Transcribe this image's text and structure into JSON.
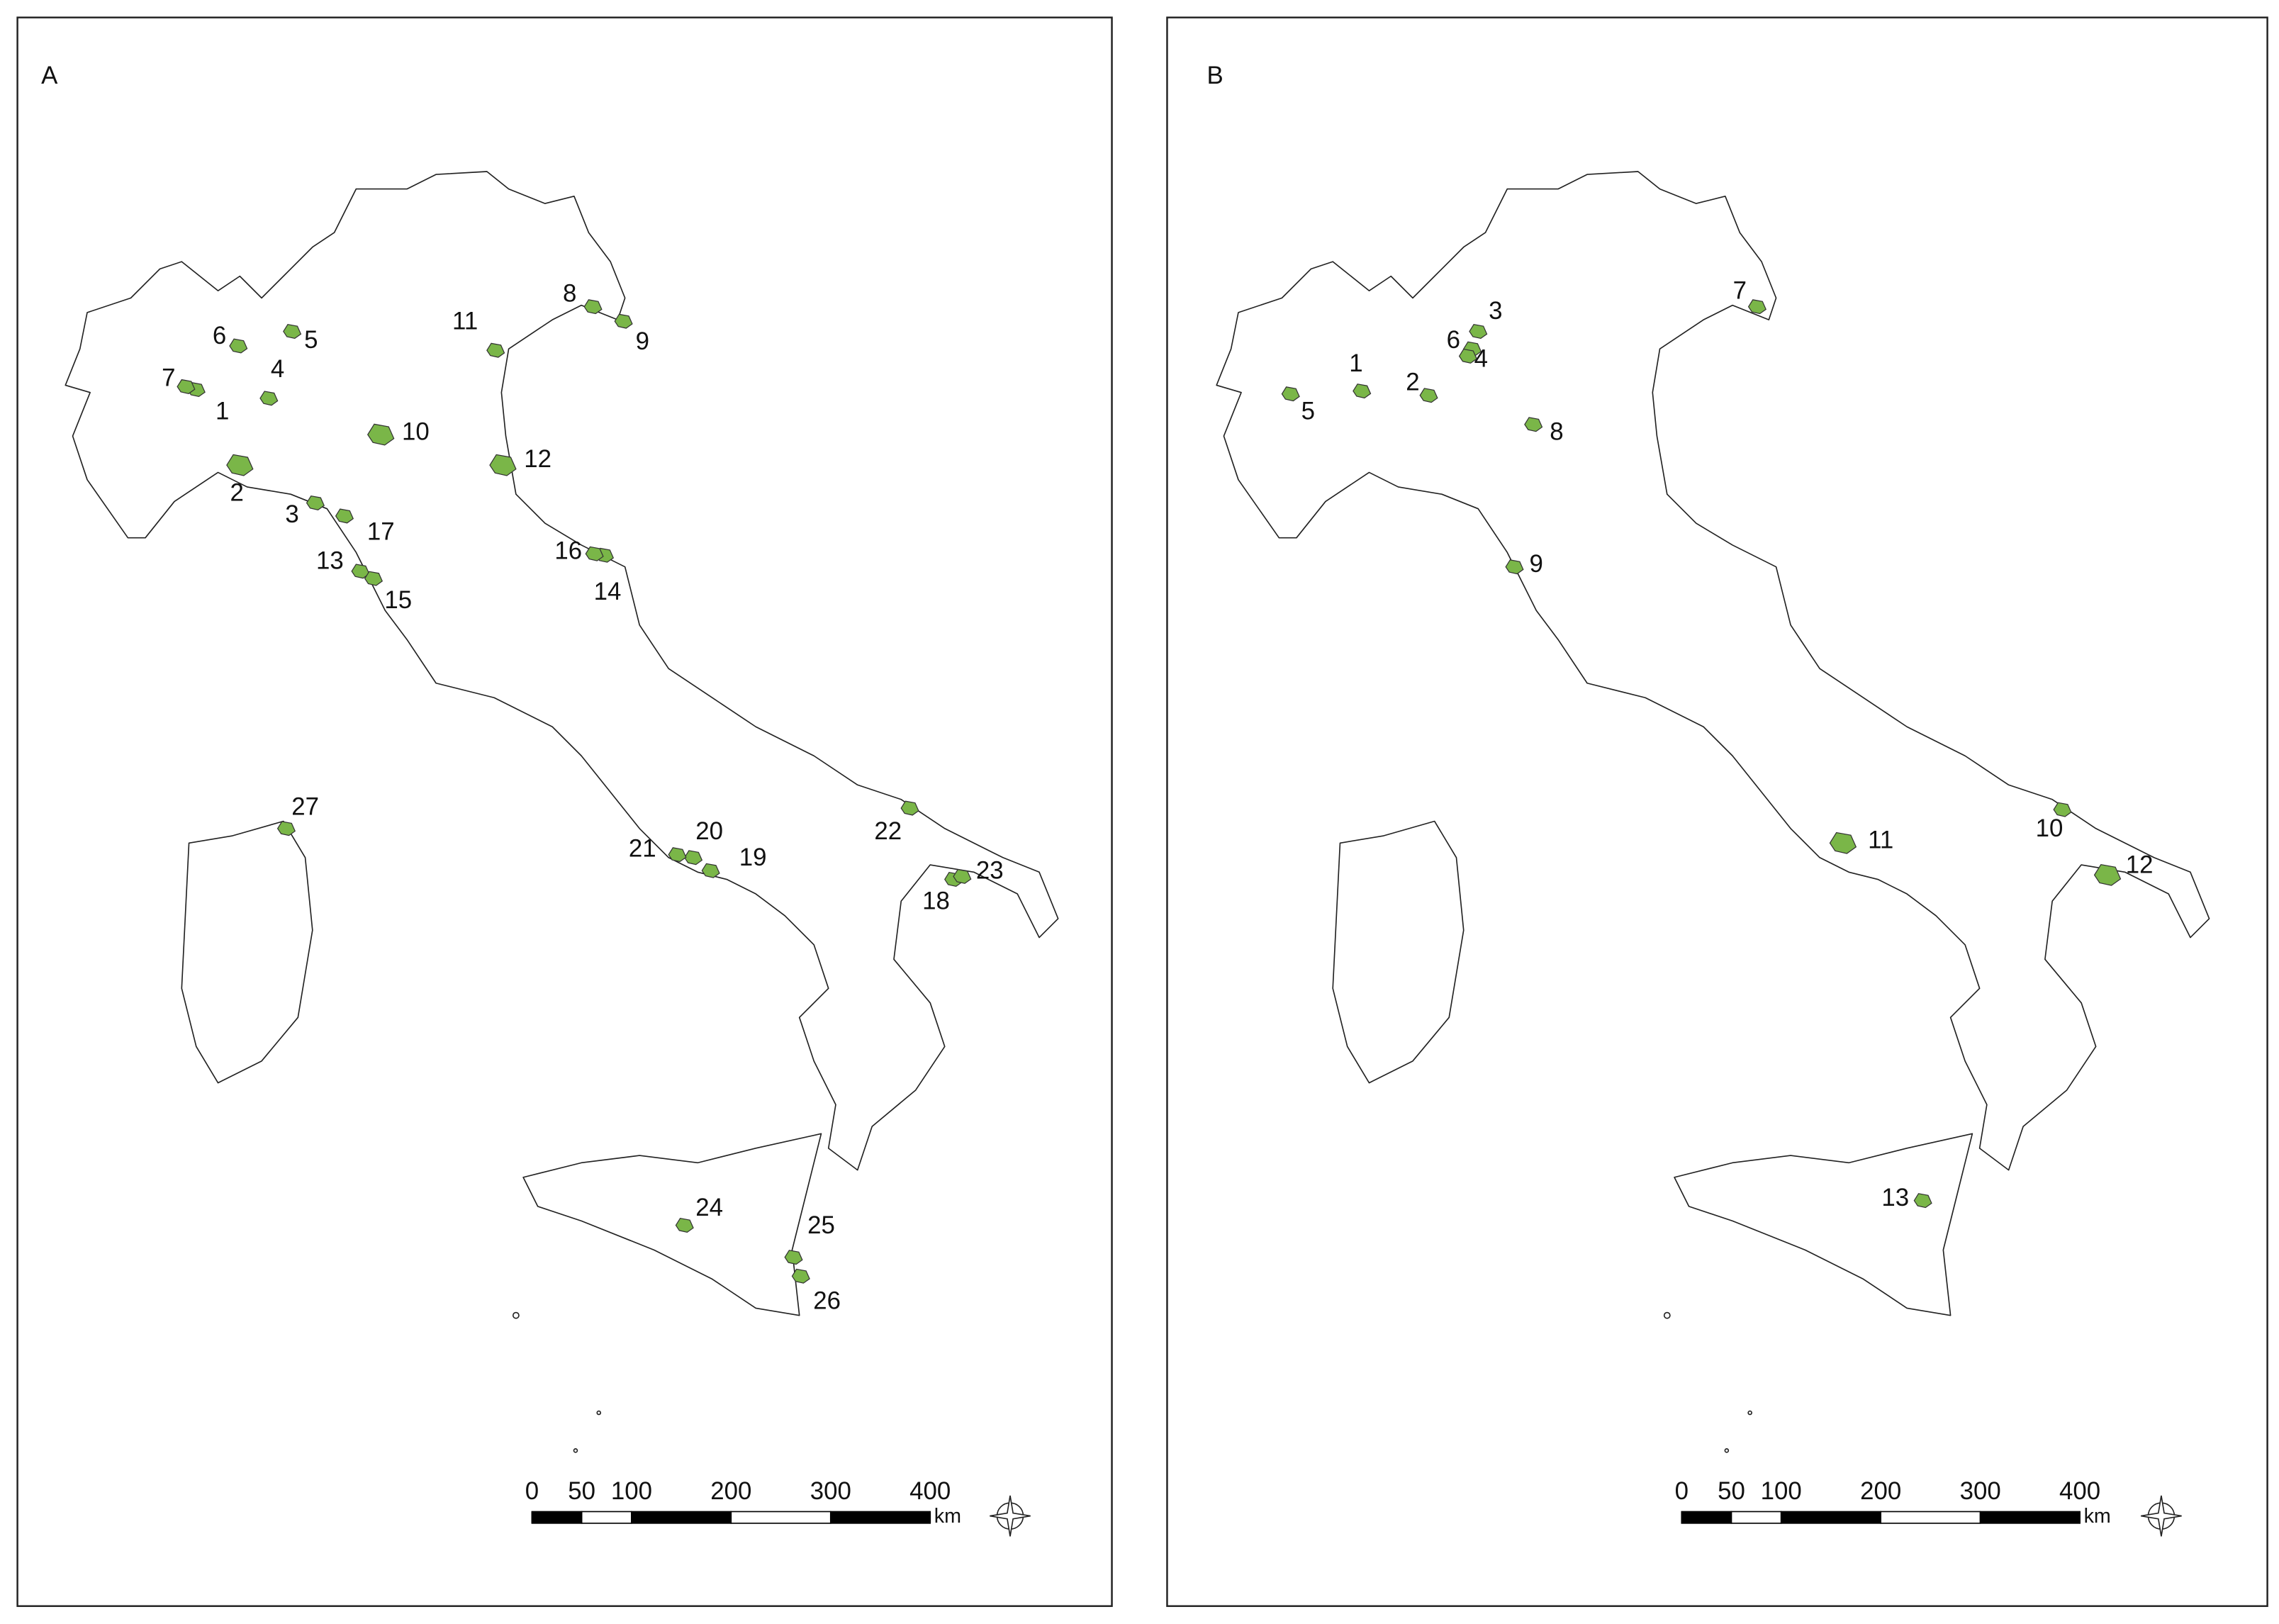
{
  "panels": [
    {
      "label": "A",
      "sites": [
        "1",
        "2",
        "3",
        "4",
        "5",
        "6",
        "7",
        "8",
        "9",
        "10",
        "11",
        "12",
        "13",
        "14",
        "15",
        "16",
        "17",
        "18",
        "19",
        "20",
        "21",
        "22",
        "23",
        "24",
        "25",
        "26",
        "27"
      ],
      "scale_bar": {
        "ticks": [
          0,
          50,
          100,
          200,
          300,
          400
        ],
        "unit": "km"
      }
    },
    {
      "label": "B",
      "sites": [
        "1",
        "2",
        "3",
        "4",
        "5",
        "6",
        "7",
        "8",
        "9",
        "10",
        "11",
        "12",
        "13"
      ],
      "scale_bar": {
        "ticks": [
          0,
          50,
          100,
          200,
          300,
          400
        ],
        "unit": "km"
      }
    }
  ]
}
